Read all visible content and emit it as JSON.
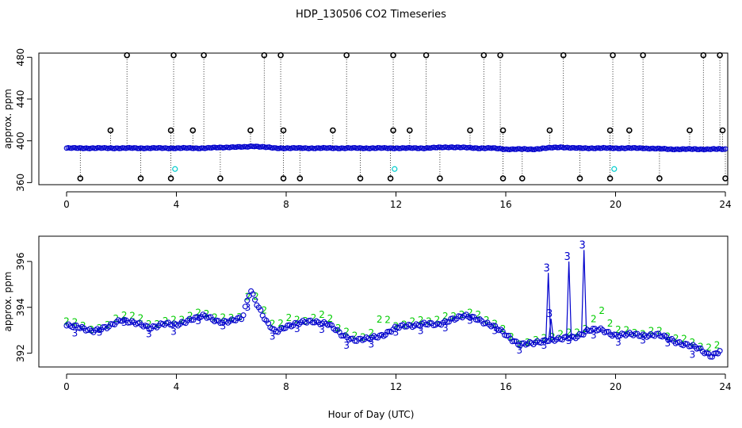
{
  "title": "HDP_130506  CO2 Timeseries",
  "xlabel": "Hour of Day (UTC)",
  "colors": {
    "background": "#ffffff",
    "axis": "#000000",
    "primary_series": "#0000cc",
    "secondary_series": "#00cc00",
    "calibration": "#00cccc",
    "spike_markers": "#000000"
  },
  "chart_data": [
    {
      "type": "scatter",
      "name": "top-panel",
      "ylabel": "approx. ppm",
      "xlim": [
        0,
        24
      ],
      "ylim": [
        358,
        484
      ],
      "xticks": [
        0,
        4,
        8,
        12,
        16,
        20,
        24
      ],
      "yticks": [
        360,
        400,
        440,
        480
      ],
      "baseline_series": {
        "name": "CO2 (blue circles)",
        "x": [
          0,
          1,
          2,
          3,
          4,
          5,
          6,
          6.5,
          6.8,
          7.2,
          7.6,
          8,
          9,
          10,
          11,
          12,
          13,
          14,
          15,
          15.5,
          16,
          17,
          17.5,
          18,
          18.5,
          19,
          20,
          21,
          22,
          23,
          24
        ],
        "y": [
          393,
          393,
          393,
          393,
          393,
          393,
          394,
          394,
          395,
          394,
          393,
          393,
          393,
          393,
          393,
          393,
          393,
          394,
          393,
          393,
          392,
          392,
          393,
          394,
          393,
          393,
          393,
          393,
          392,
          392,
          392
        ]
      },
      "high_spikes": {
        "name": "spikes to upper limit",
        "x": [
          2.2,
          3.9,
          5.0,
          7.2,
          7.8,
          10.2,
          11.9,
          13.1,
          15.2,
          15.8,
          18.1,
          19.9,
          21.0,
          23.2,
          23.8
        ],
        "y": [
          482,
          482,
          482,
          482,
          482,
          482,
          482,
          482,
          482,
          482,
          482,
          482,
          482,
          482,
          482
        ]
      },
      "mid_spikes": {
        "name": "spikes near 410",
        "x": [
          1.6,
          3.8,
          4.6,
          6.7,
          7.9,
          9.7,
          11.9,
          12.5,
          14.7,
          15.9,
          17.6,
          19.8,
          20.5,
          22.7,
          23.9
        ],
        "y": [
          410,
          410,
          410,
          410,
          410,
          410,
          410,
          410,
          410,
          410,
          410,
          410,
          410,
          410,
          410
        ]
      },
      "low_spikes": {
        "name": "dropouts to lower limit",
        "x": [
          0.5,
          2.7,
          3.8,
          5.6,
          7.9,
          8.5,
          10.7,
          11.8,
          13.6,
          15.9,
          16.6,
          18.7,
          19.8,
          21.6,
          24.0
        ],
        "y": [
          364,
          364,
          364,
          364,
          364,
          364,
          364,
          364,
          364,
          364,
          364,
          364,
          364,
          364,
          364
        ]
      },
      "calibration_points": {
        "name": "calibration (cyan)",
        "x": [
          3.95,
          11.95,
          19.95
        ],
        "y": [
          373,
          373,
          373
        ]
      }
    },
    {
      "type": "scatter",
      "name": "bottom-panel",
      "ylabel": "approx. ppm",
      "xlim": [
        0,
        24
      ],
      "ylim": [
        391.4,
        397.1
      ],
      "xticks": [
        0,
        4,
        8,
        12,
        16,
        20,
        24
      ],
      "yticks": [
        392,
        394,
        396
      ],
      "series": [
        {
          "name": "level 3 (blue)",
          "marker": "3",
          "x": [
            0,
            0.5,
            1,
            1.5,
            2,
            2.5,
            3,
            3.5,
            4,
            4.5,
            5,
            5.5,
            6,
            6.4,
            6.7,
            7.0,
            7.3,
            7.6,
            8,
            8.5,
            9,
            9.5,
            10,
            10.5,
            11,
            11.5,
            12,
            12.5,
            13,
            13.5,
            14,
            14.5,
            15,
            15.5,
            16,
            16.5,
            17,
            17.5,
            18,
            18.5,
            19,
            19.5,
            20,
            20.5,
            21,
            21.5,
            22,
            22.5,
            23,
            23.5,
            23.8
          ],
          "y": [
            393.2,
            393.1,
            393.0,
            393.1,
            393.5,
            393.3,
            393.1,
            393.3,
            393.2,
            393.5,
            393.6,
            393.4,
            393.4,
            393.5,
            394.8,
            394.0,
            393.3,
            392.9,
            393.2,
            393.3,
            393.4,
            393.3,
            392.8,
            392.6,
            392.6,
            392.8,
            393.1,
            393.2,
            393.3,
            393.2,
            393.5,
            393.6,
            393.5,
            393.2,
            392.8,
            392.4,
            392.4,
            392.6,
            392.6,
            392.7,
            393.0,
            393.0,
            392.8,
            392.8,
            392.8,
            392.8,
            392.6,
            392.4,
            392.2,
            391.9,
            392.1
          ],
          "spikes": [
            {
              "x": 17.55,
              "y": 395.5
            },
            {
              "x": 17.65,
              "y": 393.5
            },
            {
              "x": 18.3,
              "y": 396.0
            },
            {
              "x": 18.85,
              "y": 396.5
            }
          ]
        },
        {
          "name": "level 2 (green)",
          "marker": "2",
          "x": [
            0,
            0.5,
            1,
            1.5,
            2,
            2.5,
            3,
            3.5,
            4,
            4.5,
            5,
            5.5,
            6,
            6.4,
            6.7,
            7.0,
            7.3,
            7.6,
            8,
            8.5,
            9,
            9.5,
            10,
            10.5,
            11,
            11.5,
            12,
            12.5,
            13,
            13.5,
            14,
            14.5,
            15,
            15.5,
            16,
            16.5,
            17,
            17.5,
            18,
            18.5,
            19,
            19.5,
            20,
            20.5,
            21,
            21.5,
            22,
            22.5,
            23,
            23.5,
            23.8
          ],
          "y": [
            393.4,
            393.2,
            393.1,
            393.2,
            393.8,
            393.6,
            393.3,
            393.3,
            393.4,
            393.6,
            393.7,
            393.6,
            393.5,
            393.7,
            395.0,
            394.2,
            393.7,
            393.2,
            393.5,
            393.4,
            393.5,
            393.6,
            393.0,
            392.7,
            392.8,
            393.6,
            393.3,
            393.3,
            393.5,
            393.4,
            393.6,
            393.7,
            393.6,
            393.4,
            392.9,
            392.5,
            392.5,
            392.8,
            392.8,
            392.9,
            393.1,
            393.8,
            393.0,
            392.9,
            392.9,
            393.0,
            392.8,
            392.6,
            392.4,
            392.2,
            392.3
          ]
        }
      ]
    }
  ]
}
